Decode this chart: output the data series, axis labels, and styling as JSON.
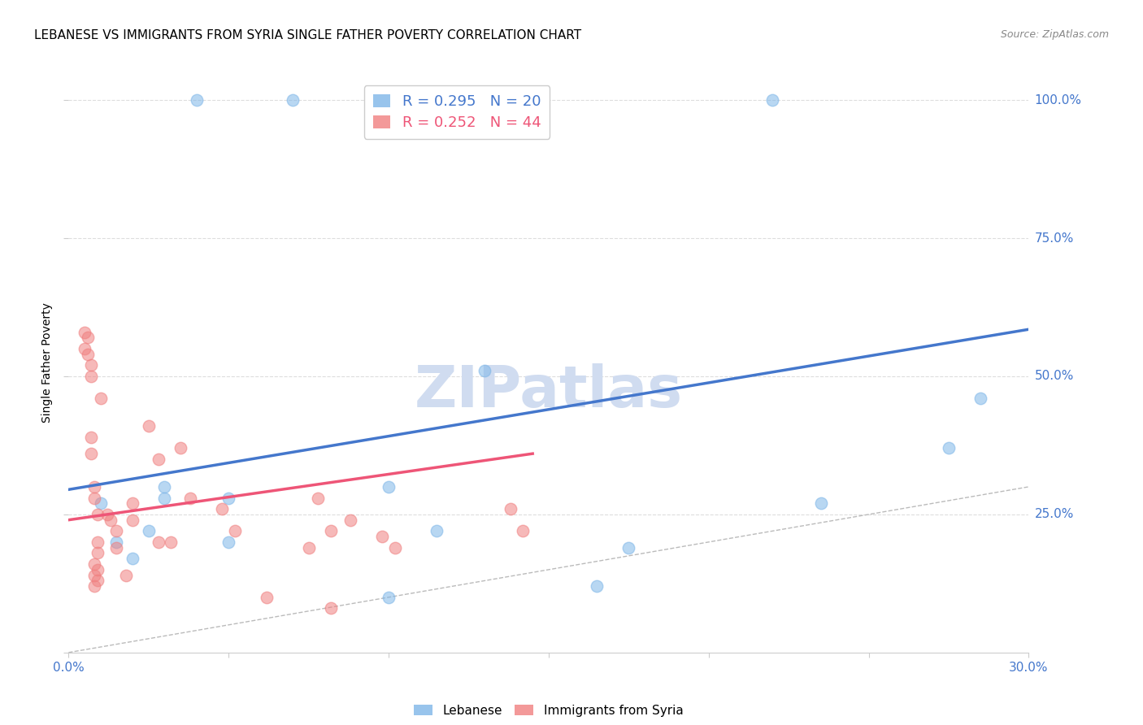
{
  "title": "LEBANESE VS IMMIGRANTS FROM SYRIA SINGLE FATHER POVERTY CORRELATION CHART",
  "source": "Source: ZipAtlas.com",
  "ylabel": "Single Father Poverty",
  "xlim": [
    0.0,
    0.3
  ],
  "ylim": [
    0.0,
    1.05
  ],
  "x_ticks": [
    0.0,
    0.05,
    0.1,
    0.15,
    0.2,
    0.25,
    0.3
  ],
  "x_tick_labels": [
    "0.0%",
    "",
    "",
    "",
    "",
    "",
    "30.0%"
  ],
  "y_ticks": [
    0.0,
    0.25,
    0.5,
    0.75,
    1.0
  ],
  "y_tick_labels_left": [
    "",
    "",
    "",
    "",
    ""
  ],
  "y_tick_labels_right": [
    "",
    "25.0%",
    "50.0%",
    "75.0%",
    "100.0%"
  ],
  "legend_r_blue": "R = 0.295",
  "legend_n_blue": "N = 20",
  "legend_r_pink": "R = 0.252",
  "legend_n_pink": "N = 44",
  "blue_color": "#7EB6E8",
  "pink_color": "#F08080",
  "blue_line_color": "#4477CC",
  "pink_line_color": "#EE5577",
  "diag_color": "#BBBBBB",
  "watermark": "ZIPatlas",
  "blue_scatter_x": [
    0.04,
    0.07,
    0.22,
    0.01,
    0.015,
    0.02,
    0.03,
    0.05,
    0.05,
    0.275,
    0.285,
    0.1,
    0.165,
    0.175,
    0.03,
    0.025,
    0.235,
    0.13,
    0.1,
    0.115
  ],
  "blue_scatter_y": [
    1.0,
    1.0,
    1.0,
    0.27,
    0.2,
    0.17,
    0.3,
    0.28,
    0.2,
    0.37,
    0.46,
    0.3,
    0.12,
    0.19,
    0.28,
    0.22,
    0.27,
    0.51,
    0.1,
    0.22
  ],
  "pink_scatter_x": [
    0.005,
    0.005,
    0.007,
    0.01,
    0.007,
    0.007,
    0.008,
    0.008,
    0.009,
    0.012,
    0.013,
    0.015,
    0.009,
    0.015,
    0.009,
    0.025,
    0.028,
    0.02,
    0.008,
    0.009,
    0.008,
    0.009,
    0.008,
    0.035,
    0.038,
    0.02,
    0.048,
    0.052,
    0.032,
    0.028,
    0.018,
    0.062,
    0.078,
    0.082,
    0.075,
    0.088,
    0.098,
    0.102,
    0.082,
    0.138,
    0.142,
    0.006,
    0.006,
    0.007
  ],
  "pink_scatter_y": [
    0.58,
    0.55,
    0.5,
    0.46,
    0.39,
    0.36,
    0.3,
    0.28,
    0.25,
    0.25,
    0.24,
    0.22,
    0.2,
    0.19,
    0.18,
    0.41,
    0.35,
    0.27,
    0.16,
    0.15,
    0.14,
    0.13,
    0.12,
    0.37,
    0.28,
    0.24,
    0.26,
    0.22,
    0.2,
    0.2,
    0.14,
    0.1,
    0.28,
    0.22,
    0.19,
    0.24,
    0.21,
    0.19,
    0.08,
    0.26,
    0.22,
    0.57,
    0.54,
    0.52
  ],
  "blue_line_x": [
    0.0,
    0.3
  ],
  "blue_line_y": [
    0.295,
    0.585
  ],
  "pink_line_x": [
    0.0,
    0.145
  ],
  "pink_line_y": [
    0.24,
    0.36
  ],
  "grid_color": "#DDDDDD",
  "background_color": "#FFFFFF",
  "title_fontsize": 11,
  "source_fontsize": 9,
  "tick_color": "#4477CC",
  "watermark_color": "#D0DCF0",
  "watermark_fontsize": 52,
  "scatter_size": 110,
  "scatter_alpha": 0.55,
  "legend_box_color": "#FFFFFF",
  "legend_edge_color": "#CCCCCC"
}
